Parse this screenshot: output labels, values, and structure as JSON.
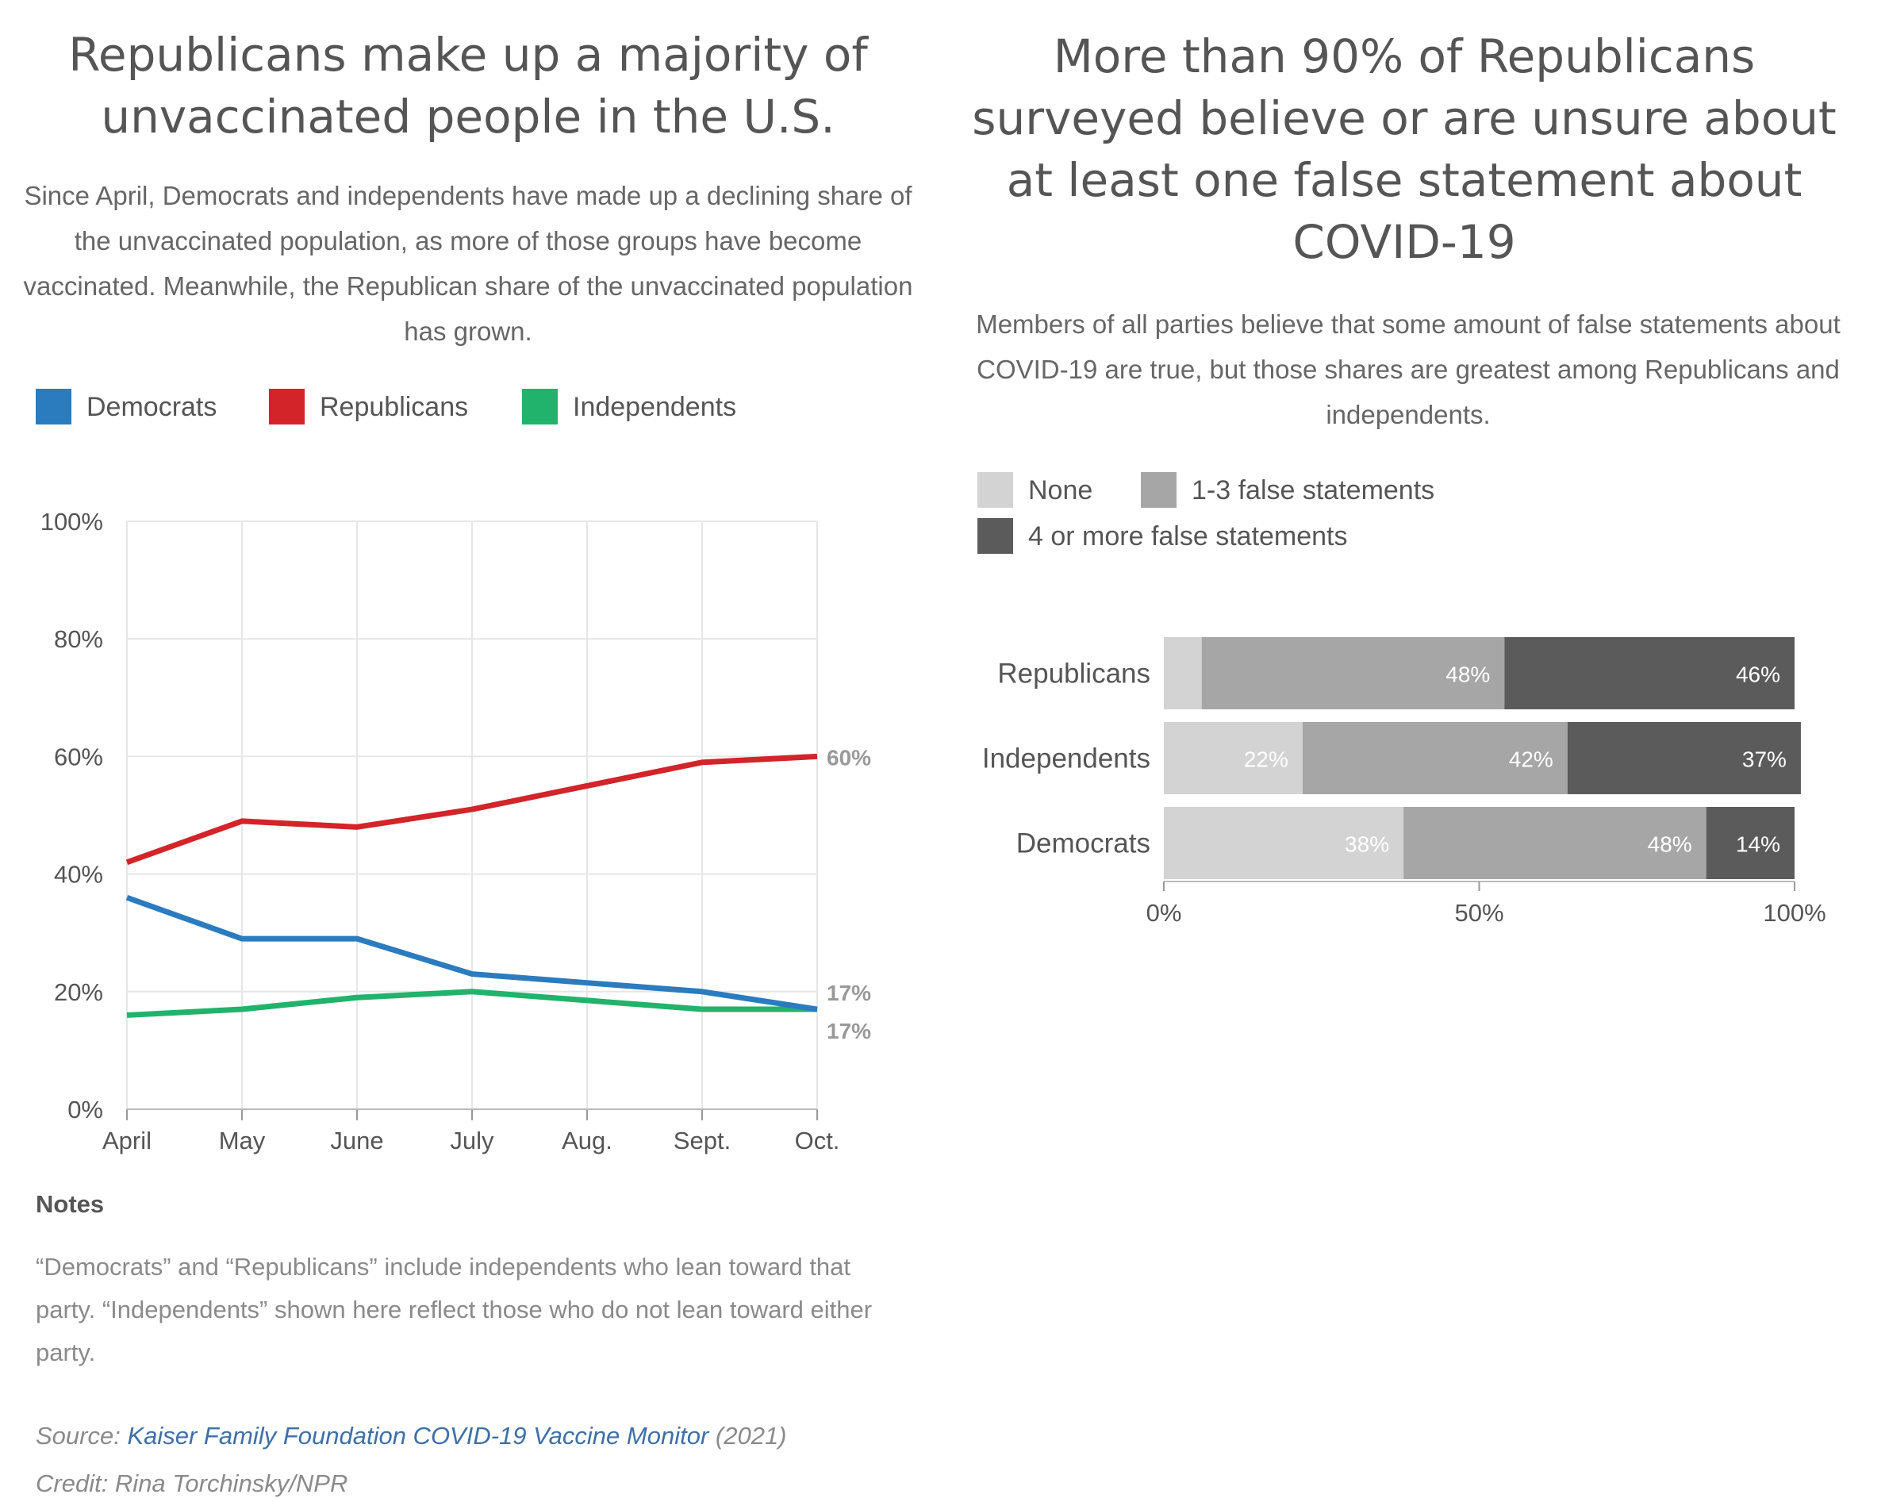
{
  "left_panel": {
    "title": "Republicans make up a majority of unvaccinated people in the U.S.",
    "subtitle": "Since April, Democrats and independents have made up a declining share of the unvaccinated population, as more of those groups have become vaccinated. Meanwhile, the Republican share of the unvaccinated population has grown.",
    "legend": [
      {
        "label": "Democrats",
        "color": "#2b7bbf"
      },
      {
        "label": "Republicans",
        "color": "#d3242a"
      },
      {
        "label": "Independents",
        "color": "#21b36b"
      }
    ],
    "notes_heading": "Notes",
    "notes_text": "“Democrats” and “Republicans” include independents who lean toward that party. “Independents” shown here reflect those who do not lean toward either party."
  },
  "right_panel": {
    "title": "More than 90% of Republicans surveyed believe or are unsure about at least one false statement about COVID-19",
    "subtitle": "Members of all parties believe that some amount of false statements about COVID-19 are true, but those shares are greatest among Republicans and independents.",
    "legend": [
      {
        "label": "None",
        "color": "#d3d3d3"
      },
      {
        "label": "1-3 false statements",
        "color": "#a6a6a6"
      },
      {
        "label": "4 or more false statements",
        "color": "#5b5b5b"
      }
    ]
  },
  "footer": {
    "source_prefix": "Source: ",
    "source_link": "Kaiser Family Foundation COVID-19 Vaccine Monitor",
    "source_year": " (2021)",
    "credit": "Credit: Rina Torchinsky/NPR"
  },
  "chart_data": [
    {
      "type": "line",
      "categories": [
        "April",
        "May",
        "June",
        "July",
        "Aug.",
        "Sept.",
        "Oct."
      ],
      "ylim": [
        0,
        100
      ],
      "yticks": [
        0,
        20,
        40,
        60,
        80,
        100
      ],
      "ytick_labels": [
        "0%",
        "20%",
        "40%",
        "60%",
        "80%",
        "100%"
      ],
      "grid": true,
      "series": [
        {
          "name": "Democrats",
          "color": "#2b7bbf",
          "values": [
            36,
            29,
            29,
            23,
            21.5,
            20,
            17
          ],
          "end_label": "17%"
        },
        {
          "name": "Republicans",
          "color": "#d3242a",
          "values": [
            42,
            49,
            48,
            51,
            55,
            59,
            60
          ],
          "end_label": "60%"
        },
        {
          "name": "Independents",
          "color": "#21b36b",
          "values": [
            16,
            17,
            19,
            20,
            18.5,
            17,
            17
          ],
          "end_label": "17%"
        }
      ]
    },
    {
      "type": "bar",
      "orientation": "horizontal",
      "stacked": true,
      "categories": [
        "Republicans",
        "Independents",
        "Democrats"
      ],
      "xlim": [
        0,
        100
      ],
      "xticks": [
        0,
        50,
        100
      ],
      "xtick_labels": [
        "0%",
        "50%",
        "100%"
      ],
      "series": [
        {
          "name": "None",
          "color": "#d3d3d3",
          "label_color": "#ffffff",
          "values": [
            6,
            22,
            38
          ],
          "labels": [
            "",
            "22%",
            "38%"
          ]
        },
        {
          "name": "1-3 false statements",
          "color": "#a6a6a6",
          "label_color": "#ffffff",
          "values": [
            48,
            42,
            48
          ],
          "labels": [
            "48%",
            "42%",
            "48%"
          ]
        },
        {
          "name": "4 or more false statements",
          "color": "#5b5b5b",
          "label_color": "#ffffff",
          "values": [
            46,
            37,
            14
          ],
          "labels": [
            "46%",
            "37%",
            "14%"
          ]
        }
      ]
    }
  ]
}
